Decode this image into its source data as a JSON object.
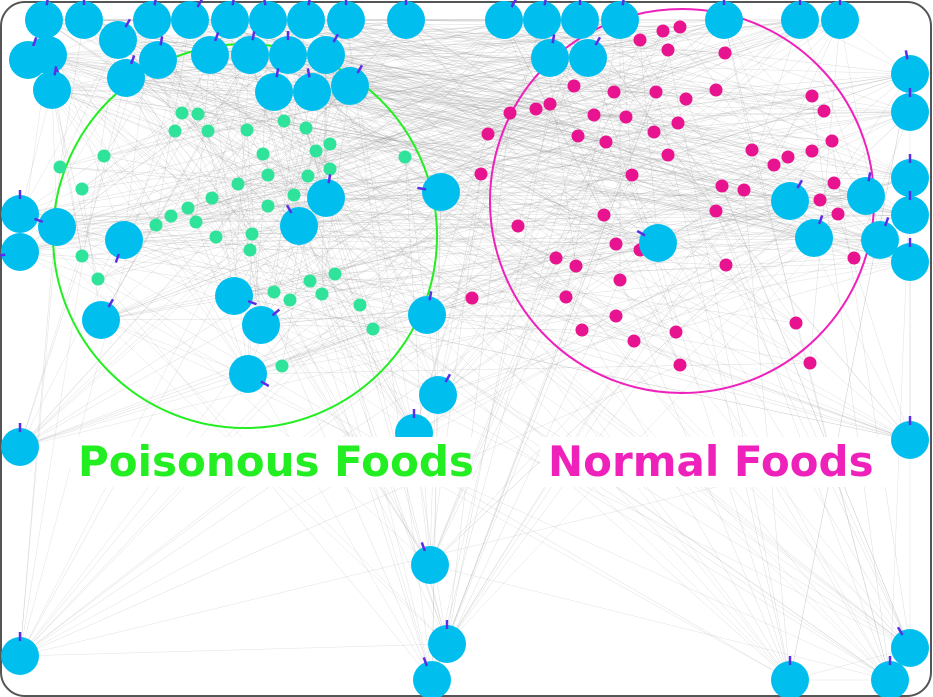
{
  "labels": {
    "poisonous": "Poisonous Foods",
    "normal": "Normal Foods"
  },
  "colors": {
    "agent": "#00bfef",
    "agent_heading": "#5a2ee6",
    "poisonous_food": "#2fe39a",
    "normal_food": "#e8138e",
    "poisonous_zone": "#22ee22",
    "normal_zone": "#ee22bb",
    "sensor_line": "#9a9a9a",
    "frame": "#555555"
  },
  "icons": {
    "agent": "agent-circle-icon",
    "poisonous_food": "poison-food-dot-icon",
    "normal_food": "normal-food-dot-icon"
  }
}
